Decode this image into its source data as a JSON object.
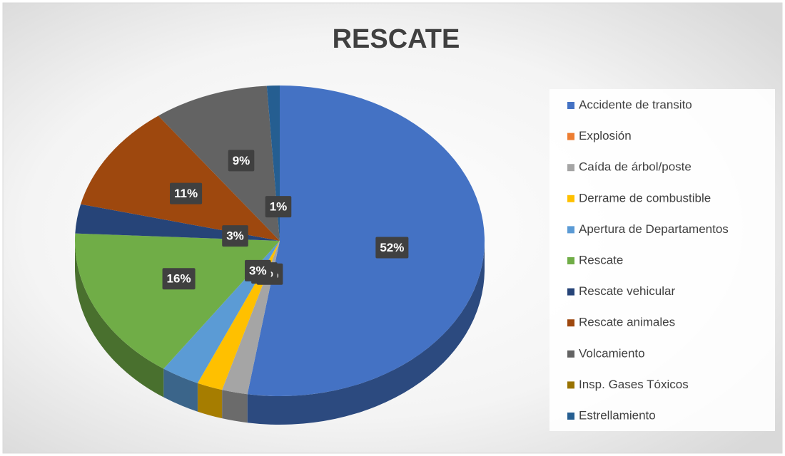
{
  "chart_data": {
    "type": "pie",
    "title": "RESCATE",
    "categories": [
      "Accidente de transito",
      "Explosión",
      "Caída de árbol/poste",
      "Derrame de combustible",
      "Apertura de Departamentos",
      "Rescate",
      "Rescate vehicular",
      "Rescate animales",
      "Volcamiento",
      "Insp. Gases Tóxicos",
      "Estrellamiento"
    ],
    "values": [
      52,
      0,
      2,
      2,
      3,
      16,
      3,
      11,
      9,
      0,
      1
    ],
    "value_labels": [
      "52%",
      null,
      "2%",
      "2%",
      "3%",
      "16%",
      "3%",
      "11%",
      "9%",
      null,
      "1%"
    ],
    "colors": [
      "#4472c4",
      "#ed7d31",
      "#a5a5a5",
      "#ffc000",
      "#5b9bd5",
      "#70ad47",
      "#264478",
      "#9e480e",
      "#636363",
      "#997300",
      "#255e91"
    ],
    "legend": "right"
  }
}
